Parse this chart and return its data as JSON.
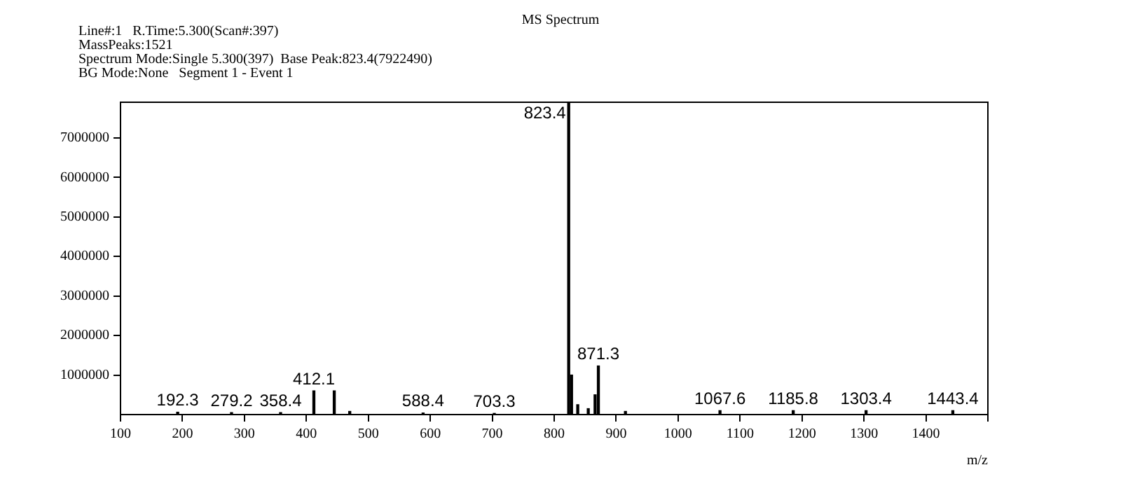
{
  "chart_data": {
    "type": "bar",
    "title": "MS Spectrum",
    "annotations": [
      "Line#:1   R.Time:5.300(Scan#:397)",
      "MassPeaks:1521",
      "Spectrum Mode:Single 5.300(397)  Base Peak:823.4(7922490)",
      "BG Mode:None   Segment 1 - Event 1",
      {
        "text": "192.3",
        "x": 192.3,
        "y": 60000
      },
      {
        "text": "279.2",
        "x": 279.2,
        "y": 50000
      },
      {
        "text": "358.4",
        "x": 358.4,
        "y": 50000
      },
      {
        "text": "412.1",
        "x": 412.1,
        "y": 600000
      },
      {
        "text": "588.4",
        "x": 588.4,
        "y": 40000
      },
      {
        "text": "703.3",
        "x": 703.3,
        "y": 30000
      },
      {
        "text": "823.4",
        "x": 823.4,
        "y": 7900000
      },
      {
        "text": "871.3",
        "x": 871.3,
        "y": 1230000
      },
      {
        "text": "1067.6",
        "x": 1067.6,
        "y": 100000
      },
      {
        "text": "1185.8",
        "x": 1185.8,
        "y": 100000
      },
      {
        "text": "1303.4",
        "x": 1303.4,
        "y": 100000
      },
      {
        "text": "1443.4",
        "x": 1443.4,
        "y": 100000
      }
    ],
    "xlabel": "m/z",
    "x": [
      192.3,
      279.2,
      358.4,
      412.1,
      445,
      470,
      588.4,
      703.3,
      823.4,
      828,
      838,
      855,
      866,
      871.3,
      915,
      1067.6,
      1185.8,
      1303.4,
      1443.4
    ],
    "values": [
      60000,
      50000,
      50000,
      600000,
      600000,
      80000,
      40000,
      30000,
      7900000,
      1000000,
      250000,
      150000,
      500000,
      1230000,
      80000,
      100000,
      100000,
      100000,
      100000
    ],
    "color": "#000000",
    "xlim": [
      100,
      1500
    ],
    "xticks": [
      100,
      200,
      300,
      400,
      500,
      600,
      700,
      800,
      900,
      1000,
      1100,
      1200,
      1300,
      1400,
      {
        "value": 1500,
        "label": null
      }
    ],
    "ylim": [
      0,
      7900000
    ],
    "yticks": [
      1000000,
      2000000,
      3000000,
      4000000,
      5000000,
      6000000,
      7000000
    ],
    "grid": false,
    "legend": false
  }
}
